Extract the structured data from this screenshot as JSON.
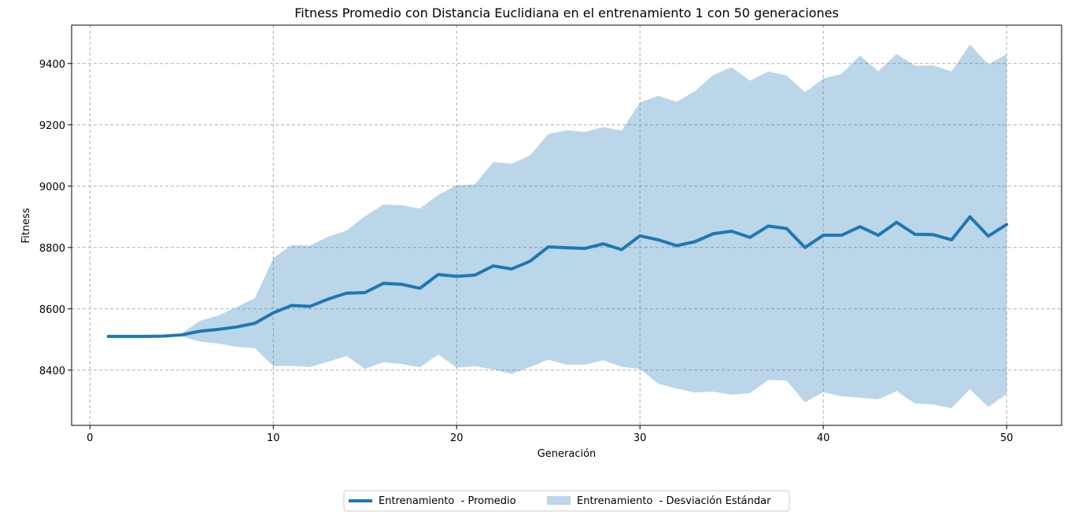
{
  "chart_data": {
    "type": "line",
    "title": "Fitness Promedio con Distancia Euclidiana en el entrenamiento 1 con 50 generaciones",
    "xlabel": "Generación",
    "ylabel": "Fitness",
    "xlim": [
      -1,
      53
    ],
    "ylim": [
      8220,
      9525
    ],
    "xticks": [
      0,
      10,
      20,
      30,
      40,
      50
    ],
    "yticks": [
      8400,
      8600,
      8800,
      9000,
      9200,
      9400
    ],
    "grid": true,
    "legend_position": "bottom-center",
    "x": [
      1,
      2,
      3,
      4,
      5,
      6,
      7,
      8,
      9,
      10,
      11,
      12,
      13,
      14,
      15,
      16,
      17,
      18,
      19,
      20,
      21,
      22,
      23,
      24,
      25,
      26,
      27,
      28,
      29,
      30,
      31,
      32,
      33,
      34,
      35,
      36,
      37,
      38,
      39,
      40,
      41,
      42,
      43,
      44,
      45,
      46,
      47,
      48,
      49,
      50
    ],
    "series": [
      {
        "name": "Entrenamiento  - Promedio",
        "kind": "line",
        "color": "#1f77b4",
        "values": [
          8510,
          8510,
          8510,
          8511,
          8515,
          8527,
          8533,
          8541,
          8553,
          8587,
          8611,
          8608,
          8632,
          8651,
          8653,
          8683,
          8680,
          8667,
          8712,
          8706,
          8710,
          8740,
          8730,
          8755,
          8802,
          8799,
          8797,
          8812,
          8793,
          8838,
          8825,
          8806,
          8819,
          8845,
          8853,
          8833,
          8870,
          8862,
          8800,
          8840,
          8840,
          8868,
          8840,
          8882,
          8843,
          8842,
          8825,
          8900,
          8837,
          8875
        ]
      },
      {
        "name": "Entrenamiento  - Desviación Estándar",
        "kind": "band",
        "color": "#1f77b4",
        "opacity": 0.3,
        "upper": [
          8510,
          8510,
          8510,
          8511,
          8520,
          8561,
          8578,
          8606,
          8635,
          8765,
          8808,
          8806,
          8836,
          8855,
          8902,
          8940,
          8938,
          8927,
          8972,
          9003,
          9006,
          9079,
          9073,
          9100,
          9170,
          9182,
          9177,
          9193,
          9181,
          9273,
          9295,
          9275,
          9310,
          9363,
          9388,
          9344,
          9374,
          9361,
          9306,
          9351,
          9366,
          9426,
          9375,
          9431,
          9393,
          9394,
          9374,
          9462,
          9397,
          9430
        ],
        "lower": [
          8510,
          8510,
          8510,
          8511,
          8510,
          8493,
          8487,
          8476,
          8472,
          8413,
          8414,
          8410,
          8428,
          8446,
          8404,
          8426,
          8420,
          8409,
          8451,
          8408,
          8413,
          8402,
          8388,
          8410,
          8434,
          8418,
          8418,
          8432,
          8411,
          8404,
          8356,
          8340,
          8327,
          8330,
          8320,
          8325,
          8368,
          8366,
          8295,
          8328,
          8315,
          8310,
          8305,
          8332,
          8291,
          8288,
          8276,
          8338,
          8280,
          8322
        ]
      }
    ]
  }
}
